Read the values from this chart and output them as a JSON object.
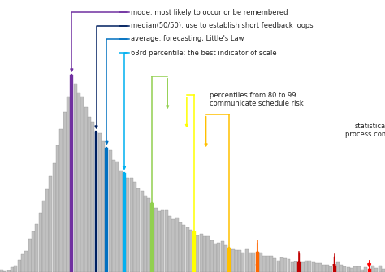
{
  "background_color": "#ffffff",
  "bar_color": "#c0c0c0",
  "bar_edge_color": "#909090",
  "n_bars": 110,
  "peak_idx": 20,
  "mode_idx": 20,
  "median_idx": 27,
  "average_idx": 30,
  "p63_idx": 35,
  "p70_idx": 43,
  "p80_idx": 55,
  "p85_idx": 65,
  "p90_idx": 73,
  "p95_idx": 85,
  "p99_idx": 95,
  "spc_idx": 105,
  "mode_color": "#7030a0",
  "median_color": "#002060",
  "average_color": "#0070c0",
  "p63_color": "#00b0f0",
  "p70_color": "#92d050",
  "p80_color": "#ffff00",
  "p85_color": "#ffc000",
  "p90_color": "#ff6600",
  "p95_color": "#c00000",
  "p99_color": "#c00000",
  "spc_color": "#ff0000",
  "annot_mode_label": "mode: most likely to occur or be remembered",
  "annot_median_label": "median(50/50): use to establish short feedback loops",
  "annot_average_label": "average: forecasting, Little's Law",
  "annot_p63_label": "63rd percentile: the best indicator of scale",
  "p80_99_label": "percentiles from 80 to 99\ncommunicate schedule risk",
  "spc_label": "statistical\nprocess control",
  "decay_rate": 0.045,
  "rise_power": 2.0
}
